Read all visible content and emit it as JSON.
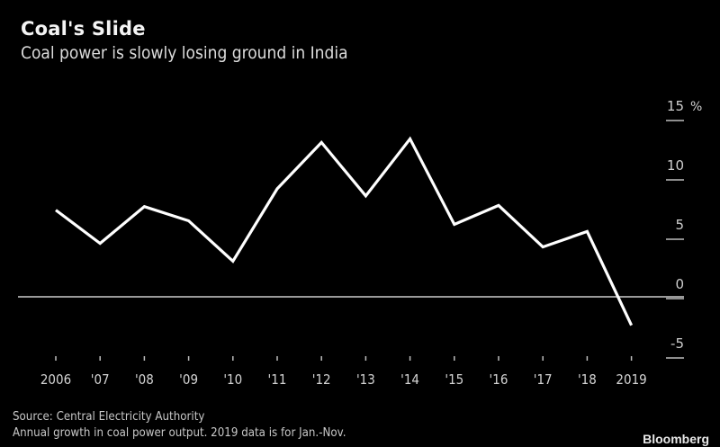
{
  "header": {
    "title": "Coal's Slide",
    "subtitle": "Coal power is slowly losing ground in India"
  },
  "footer": {
    "source": "Source: Central Electricity Authority",
    "note": "Annual growth in coal power output. 2019 data is for Jan.-Nov.",
    "brand": "Bloomberg"
  },
  "chart_data": {
    "type": "line",
    "title": "Coal's Slide",
    "subtitle": "Coal power is slowly losing ground in India",
    "xlabel": "",
    "ylabel": "%",
    "categories": [
      "2006",
      "'07",
      "'08",
      "'09",
      "'10",
      "'11",
      "'12",
      "'13",
      "'14",
      "'15",
      "'16",
      "'17",
      "'18",
      "2019"
    ],
    "series": [
      {
        "name": "Annual growth in coal power output",
        "values": [
          7.3,
          4.5,
          7.6,
          6.4,
          3.0,
          9.1,
          13.0,
          8.5,
          13.3,
          6.1,
          7.7,
          4.2,
          5.5,
          -2.4
        ],
        "color": "#ffffff"
      }
    ],
    "ylim": [
      -5,
      15
    ],
    "yticks": [
      15,
      10,
      5,
      0,
      -5
    ],
    "ytick_labels": [
      "15",
      "10",
      "5",
      "0",
      "-5"
    ],
    "y_unit": "%",
    "y_axis_side": "right",
    "zero_line": true,
    "grid": false,
    "legend": "none"
  }
}
